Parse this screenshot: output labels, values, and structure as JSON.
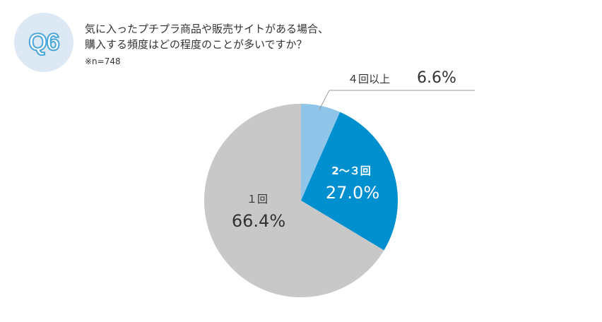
{
  "badge": {
    "label": "Q6"
  },
  "question": {
    "line1": "気に入ったプチプラ商品や販売サイトがある場合、",
    "line2": "購入する頻度はどの程度のことが多いですか？"
  },
  "sample_note": "※n=748",
  "colors": {
    "four_plus": "#8ec5e9",
    "two_three": "#0090d0",
    "once": "#c8c8c8",
    "badge_bg": "#dce9f5",
    "badge_stroke": "#4aa6d8"
  },
  "chart_data": {
    "type": "pie",
    "slices": [
      {
        "label": "４回以上",
        "value": 6.6,
        "value_label": "6.6%",
        "color": "#8ec5e9"
      },
      {
        "label": "2～３回",
        "value": 27.0,
        "value_label": "27.0%",
        "color": "#0090d0"
      },
      {
        "label": "１回",
        "value": 66.4,
        "value_label": "66.4%",
        "color": "#c8c8c8"
      }
    ],
    "start": "12 o'clock",
    "direction": "clockwise"
  }
}
